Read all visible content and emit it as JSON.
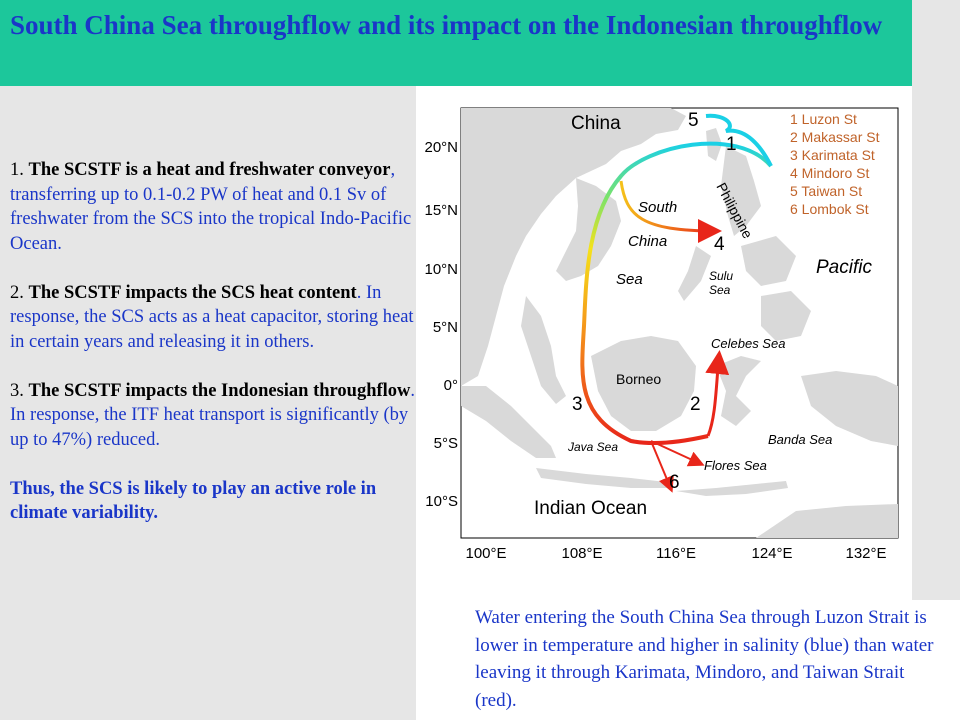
{
  "title": "South China Sea throughflow and its impact on the Indonesian throughflow",
  "points": [
    {
      "num": "1. ",
      "strong": "The SCSTF is a heat and freshwater conveyor",
      "rest": ", transferring up to 0.1-0.2 PW of heat and 0.1 Sv of freshwater from the SCS into the tropical Indo-Pacific Ocean."
    },
    {
      "num": "2. ",
      "strong": "The SCSTF impacts the SCS heat content",
      "rest": ".  In response, the SCS  acts as a heat capacitor, storing heat in certain years and releasing it in others."
    },
    {
      "num": "3. ",
      "strong": "The SCSTF impacts the Indonesian throughflow",
      "rest": ". In response, the ITF heat transport is significantly (by up to 47%) reduced."
    }
  ],
  "conclusion": "Thus, the SCS is likely to play an active role in climate variability.",
  "caption": "Water entering the South China Sea through Luzon Strait is lower in temperature and higher in salinity (blue) than water leaving it through Karimata, Mindoro, and Taiwan Strait (red).",
  "map": {
    "lat_labels": [
      "20°N",
      "15°N",
      "10°N",
      "5°N",
      "0°",
      "5°S",
      "10°S"
    ],
    "lon_labels": [
      "100°E",
      "108°E",
      "116°E",
      "124°E",
      "132°E"
    ],
    "places": {
      "china": "China",
      "south": "South",
      "china2": "China",
      "sea": "Sea",
      "philippine": "Philippine",
      "pacific": "Pacific",
      "sulu1": "Sulu",
      "sulu2": "Sea",
      "celebes": "Celebes Sea",
      "borneo": "Borneo",
      "banda": "Banda Sea",
      "java": "Java Sea",
      "flores": "Flores Sea",
      "indian": "Indian Ocean"
    },
    "strait_numbers": [
      "1",
      "2",
      "3",
      "4",
      "5",
      "6"
    ],
    "legend": [
      "1 Luzon St",
      "2 Makassar St",
      "3 Karimata St",
      "4 Mindoro St",
      "5 Taiwan St",
      "6 Lombok St"
    ],
    "colors": {
      "land": "#d9d9d9",
      "legend_text": "#c0632a",
      "cold": "#1ad0e6",
      "warm": "#e8261a",
      "mid": "#f5e21a"
    }
  }
}
